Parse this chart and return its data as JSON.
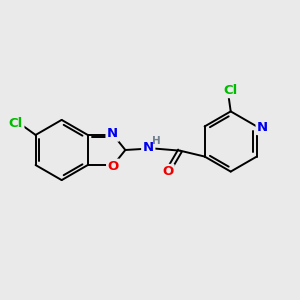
{
  "background_color": "#eaeaea",
  "bond_color": "#000000",
  "atom_colors": {
    "Cl": "#00bb00",
    "N": "#0000ee",
    "O": "#ee0000",
    "H": "#708090",
    "C": "#000000"
  },
  "figsize": [
    3.0,
    3.0
  ],
  "dpi": 100
}
